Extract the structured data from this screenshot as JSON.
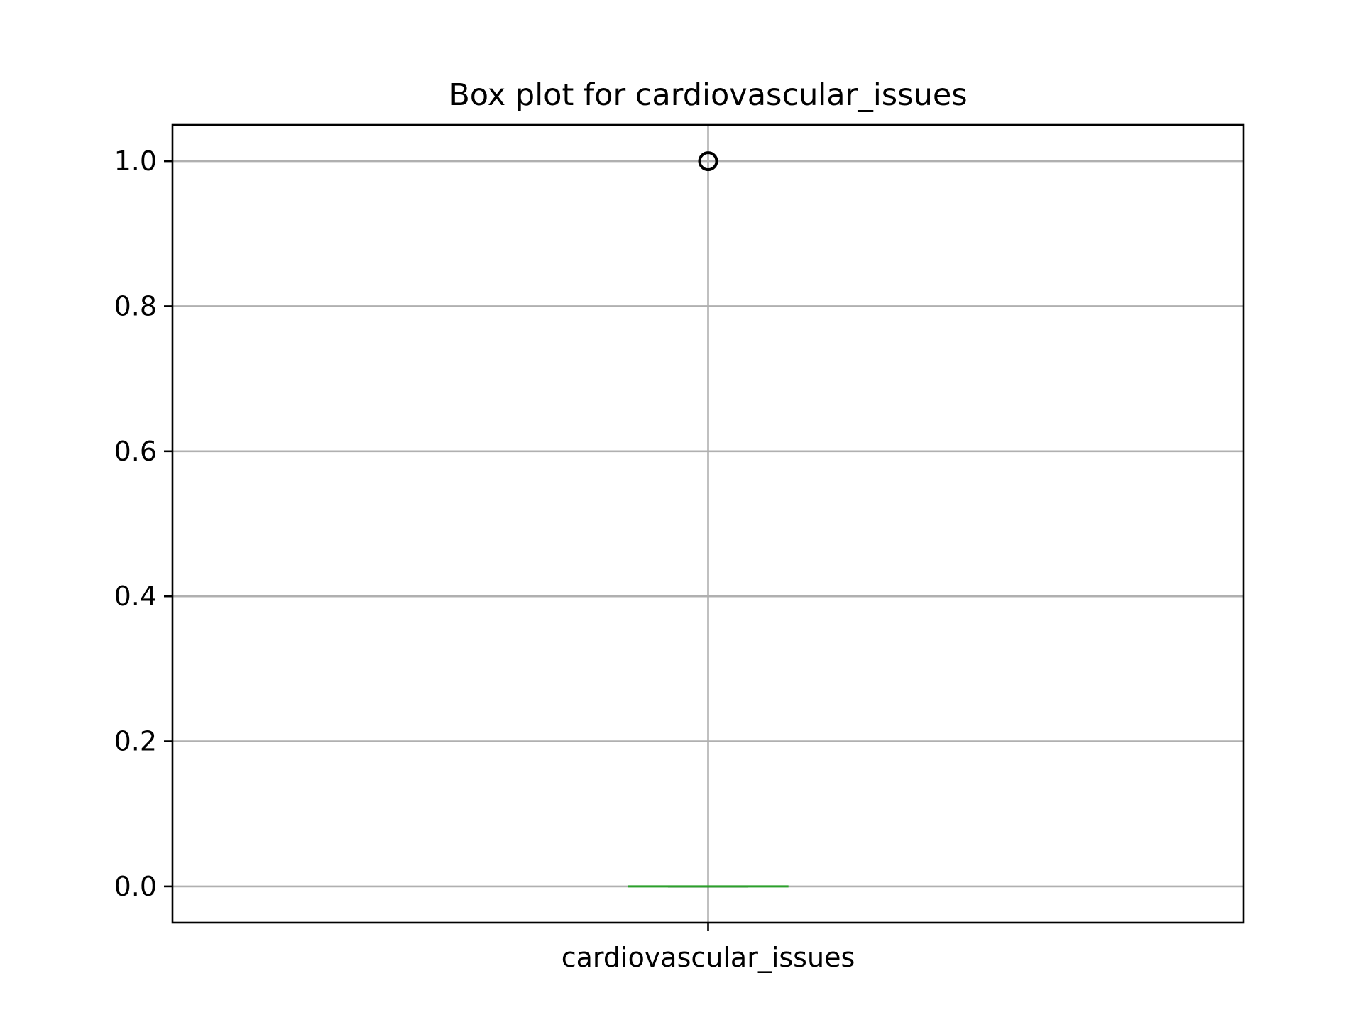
{
  "chart_data": {
    "type": "box",
    "title": "Box plot for cardiovascular_issues",
    "xlabel": "",
    "ylabel": "",
    "categories": [
      "cardiovascular_issues"
    ],
    "boxes": [
      {
        "category": "cardiovascular_issues",
        "whisker_low": 0.0,
        "q1": 0.0,
        "median": 0.0,
        "q3": 0.0,
        "whisker_high": 0.0,
        "outliers": [
          1.0
        ]
      }
    ],
    "ylim": [
      -0.05,
      1.05
    ],
    "yticks": [
      0.0,
      0.2,
      0.4,
      0.6,
      0.8,
      1.0
    ],
    "ytick_labels": [
      "0.0",
      "0.2",
      "0.4",
      "0.6",
      "0.8",
      "1.0"
    ],
    "grid": true,
    "colors": {
      "median": "#2ca02c",
      "box": "#1f77b4",
      "whisker": "#000000",
      "outlier": "#000000",
      "grid": "#b0b0b0",
      "axes": "#000000"
    }
  }
}
